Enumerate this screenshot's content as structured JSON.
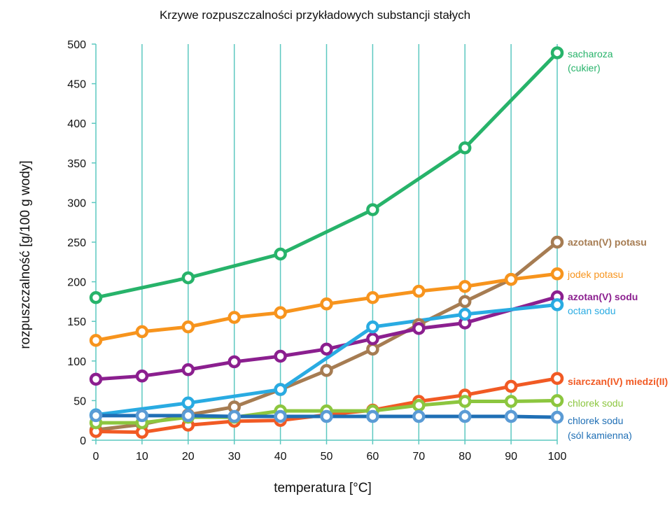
{
  "chart_data": {
    "type": "line",
    "title": "Krzywe rozpuszczalności przykładowych substancji stałych",
    "xlabel": "temperatura [°C]",
    "ylabel": "rozpuszczalność [g/100 g wody]",
    "xlim": [
      0,
      100
    ],
    "ylim": [
      0,
      500
    ],
    "xticks": [
      0,
      10,
      20,
      30,
      40,
      50,
      60,
      70,
      80,
      90,
      100
    ],
    "yticks": [
      0,
      50,
      100,
      150,
      200,
      250,
      300,
      350,
      400,
      450,
      500
    ],
    "grid": "vertical",
    "legend": "labels at line ends (right)",
    "series": [
      {
        "name": "sacharoza",
        "label_lines": [
          "sacharoza",
          "(cukier)"
        ],
        "color": "#27b36a",
        "x": [
          0,
          20,
          40,
          60,
          80,
          100
        ],
        "y": [
          180,
          205,
          235,
          291,
          369,
          489
        ]
      },
      {
        "name": "azotan(V) potasu",
        "label_lines": [
          "azotan(V) potasu"
        ],
        "color": "#a67c52",
        "x": [
          0,
          10,
          20,
          30,
          40,
          50,
          60,
          70,
          80,
          90,
          100
        ],
        "y": [
          13,
          20,
          32,
          42,
          64,
          88,
          115,
          146,
          175,
          203,
          250
        ]
      },
      {
        "name": "jodek potasu",
        "label_lines": [
          "jodek potasu"
        ],
        "color": "#f7941d",
        "x": [
          0,
          10,
          20,
          30,
          40,
          50,
          60,
          70,
          80,
          90,
          100
        ],
        "y": [
          126,
          137,
          143,
          155,
          161,
          172,
          180,
          188,
          194,
          203,
          210
        ]
      },
      {
        "name": "azotan(V) sodu",
        "label_lines": [
          "azotan(V) sodu"
        ],
        "color": "#8b1f8f",
        "x": [
          0,
          10,
          20,
          30,
          40,
          50,
          60,
          70,
          80,
          100
        ],
        "y": [
          77,
          81,
          89,
          99,
          106,
          115,
          128,
          141,
          148,
          181
        ]
      },
      {
        "name": "octan sodu",
        "label_lines": [
          "octan sodu"
        ],
        "color": "#29abe2",
        "x": [
          0,
          20,
          40,
          60,
          80,
          100
        ],
        "y": [
          32,
          47,
          64,
          143,
          159,
          171
        ]
      },
      {
        "name": "siarczan(IV) miedzi(II)",
        "label_lines": [
          "siarczan(IV) miedzi(II)"
        ],
        "color": "#f15a24",
        "x": [
          0,
          10,
          20,
          30,
          40,
          50,
          60,
          70,
          80,
          90,
          100
        ],
        "y": [
          11,
          10,
          19,
          24,
          25,
          32,
          38,
          49,
          57,
          68,
          78
        ]
      },
      {
        "name": "chlorek sodu",
        "label_lines": [
          "chlorek sodu"
        ],
        "color": "#8cc63f",
        "x": [
          0,
          10,
          20,
          30,
          40,
          50,
          60,
          70,
          80,
          90,
          100
        ],
        "y": [
          22,
          22,
          29,
          29,
          37,
          37,
          37,
          44,
          49,
          49,
          50
        ]
      },
      {
        "name": "chlorek sodu (sól kamienna)",
        "label_lines": [
          "chlorek sodu",
          "(sól kamienna)"
        ],
        "color": "#1f6fb5",
        "marker_color": "#5b9bd5",
        "x": [
          0,
          10,
          20,
          30,
          40,
          50,
          60,
          70,
          80,
          90,
          100
        ],
        "y": [
          31,
          31,
          31,
          30,
          30,
          30,
          30,
          30,
          30,
          30,
          29
        ]
      }
    ]
  }
}
